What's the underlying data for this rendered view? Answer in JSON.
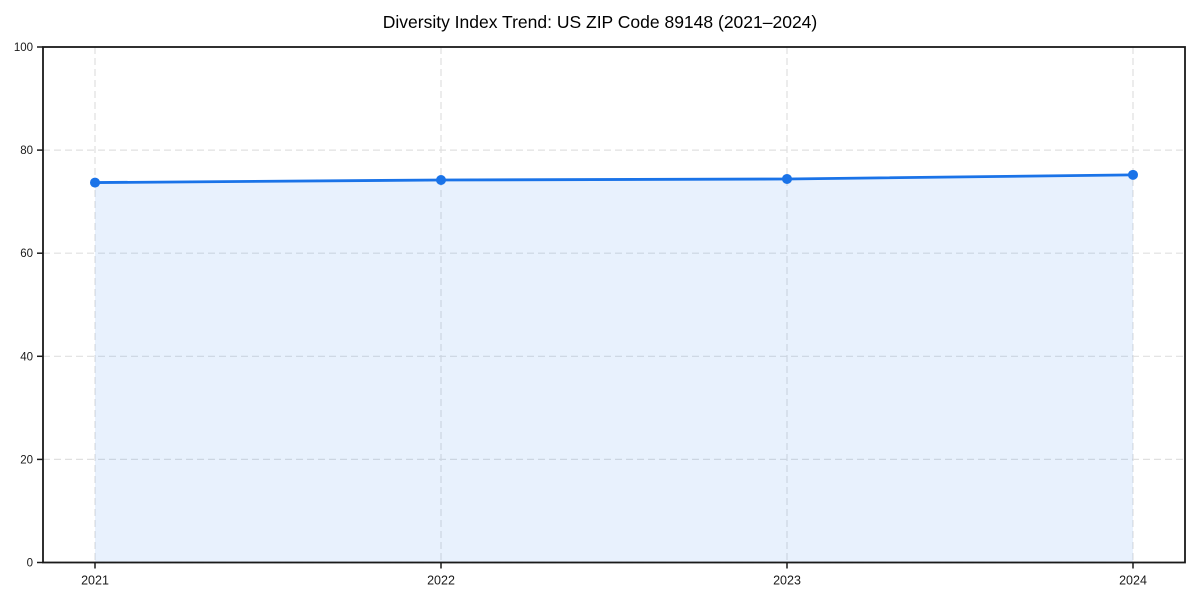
{
  "chart_data": {
    "type": "area",
    "title": "Diversity Index Trend: US ZIP Code 89148 (2021–2024)",
    "categories": [
      "2021",
      "2022",
      "2023",
      "2024"
    ],
    "series": [
      {
        "name": "Diversity Index",
        "values": [
          73.7,
          74.2,
          74.4,
          75.2
        ]
      }
    ],
    "xlabel": "",
    "ylabel": "",
    "ylim": [
      0,
      100
    ],
    "yticks": [
      0,
      20,
      40,
      60,
      80,
      100
    ],
    "grid": "dashed, both axes, at major ticks",
    "legend": "none",
    "colors": {
      "line": "#1a73e8",
      "marker": "#1a73e8",
      "area_fill": "#1a73e8",
      "area_fill_opacity": 0.1,
      "grid": "#e0e0e0",
      "spine": "#1a1a1a",
      "tick_label": "#1a1a1a",
      "title": "#000000",
      "background": "#ffffff"
    }
  }
}
